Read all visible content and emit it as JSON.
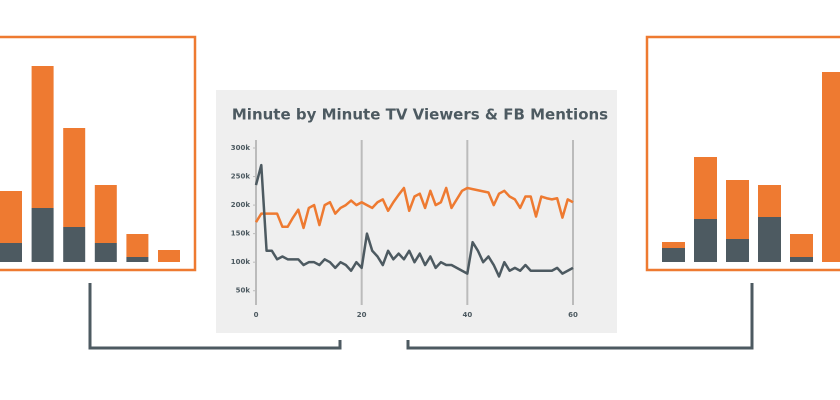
{
  "chart_data": [
    {
      "type": "bar",
      "stacked": true,
      "series": [
        {
          "color": "#4d5a61",
          "values": [
            19,
            54,
            35,
            19,
            5,
            0
          ]
        },
        {
          "color": "#ee7a31",
          "values": [
            52,
            142,
            99,
            58,
            23,
            12
          ]
        }
      ]
    },
    {
      "type": "line",
      "title": "Minute by Minute TV Viewers & FB Mentions",
      "x": [
        0,
        1,
        2,
        3,
        4,
        5,
        6,
        7,
        8,
        9,
        10,
        11,
        12,
        13,
        14,
        15,
        16,
        17,
        18,
        19,
        20,
        21,
        22,
        23,
        24,
        25,
        26,
        27,
        28,
        29,
        30,
        31,
        32,
        33,
        34,
        35,
        36,
        37,
        38,
        39,
        40,
        41,
        42,
        43,
        44,
        45,
        46,
        47,
        48,
        49,
        50,
        51,
        52,
        53,
        54,
        55,
        56,
        57,
        58,
        59,
        60
      ],
      "series": [
        {
          "color": "#ee7a31",
          "values": [
            170,
            185,
            185,
            185,
            185,
            162,
            162,
            178,
            192,
            160,
            195,
            200,
            165,
            200,
            205,
            185,
            195,
            200,
            208,
            200,
            205,
            200,
            195,
            205,
            210,
            190,
            205,
            218,
            230,
            190,
            215,
            220,
            195,
            225,
            200,
            205,
            230,
            195,
            210,
            225,
            230,
            228,
            226,
            224,
            222,
            200,
            220,
            225,
            215,
            210,
            195,
            215,
            215,
            180,
            215,
            212,
            210,
            212,
            178,
            210,
            205
          ]
        },
        {
          "color": "#4d5a61",
          "values": [
            235,
            270,
            120,
            120,
            105,
            110,
            105,
            105,
            105,
            95,
            100,
            100,
            95,
            105,
            100,
            90,
            100,
            95,
            85,
            100,
            90,
            150,
            120,
            110,
            95,
            120,
            105,
            115,
            105,
            120,
            100,
            115,
            95,
            110,
            90,
            100,
            95,
            95,
            90,
            85,
            80,
            135,
            120,
            100,
            110,
            95,
            75,
            100,
            85,
            90,
            85,
            95,
            85,
            85,
            85,
            85,
            85,
            90,
            80,
            85,
            90
          ]
        }
      ],
      "xlim": [
        0,
        60
      ],
      "xticks": [
        0,
        20,
        40,
        60
      ],
      "ylim": [
        25,
        300
      ],
      "yticks": [
        {
          "value": 50,
          "label": "50k"
        },
        {
          "value": 100,
          "label": "100k"
        },
        {
          "value": 150,
          "label": "150k"
        },
        {
          "value": 200,
          "label": "200k"
        },
        {
          "value": 250,
          "label": "250k"
        },
        {
          "value": 300,
          "label": "300k"
        }
      ],
      "grid": true
    },
    {
      "type": "bar",
      "stacked": true,
      "series": [
        {
          "color": "#4d5a61",
          "values": [
            14,
            43,
            23,
            45,
            5,
            0
          ]
        },
        {
          "color": "#ee7a31",
          "values": [
            6,
            62,
            59,
            32,
            23,
            190
          ]
        }
      ]
    }
  ]
}
